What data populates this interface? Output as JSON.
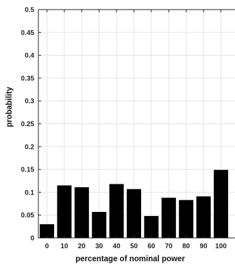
{
  "chart_data": {
    "type": "bar",
    "xlabel": "percentage of nominal power",
    "ylabel": "probability",
    "categories": [
      "0",
      "10",
      "20",
      "30",
      "40",
      "50",
      "60",
      "70",
      "80",
      "90",
      "100"
    ],
    "values": [
      0.03,
      0.115,
      0.111,
      0.057,
      0.118,
      0.107,
      0.048,
      0.088,
      0.083,
      0.091,
      0.149
    ],
    "ylim": [
      0,
      0.5
    ],
    "yticks": [
      "0",
      "0.05",
      "0.1",
      "0.15",
      "0.2",
      "0.25",
      "0.3",
      "0.35",
      "0.4",
      "0.45",
      "0.5"
    ],
    "grid": true,
    "bar_color": "#000000"
  }
}
